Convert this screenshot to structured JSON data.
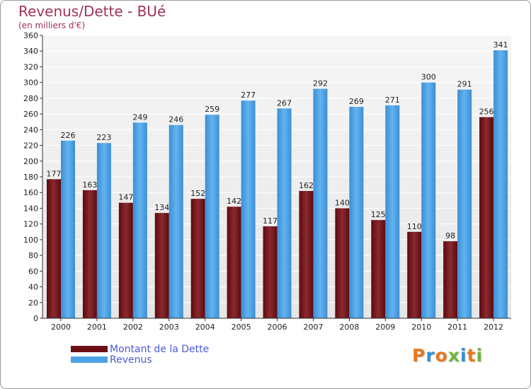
{
  "title": "Revenus/Dette - BUé",
  "subtitle": "(en milliers d'€)",
  "logo": {
    "text": "Proxiti",
    "letters": [
      {
        "ch": "P",
        "color": "#e8771e"
      },
      {
        "ch": "r",
        "color": "#2f8fd8"
      },
      {
        "ch": "o",
        "color": "#e8771e"
      },
      {
        "ch": "x",
        "color": "#6cb83b"
      },
      {
        "ch": "i",
        "color": "#2f8fd8"
      },
      {
        "ch": "t",
        "color": "#e8771e"
      },
      {
        "ch": "i",
        "color": "#6cb83b"
      }
    ]
  },
  "legend": [
    {
      "label": "Montant de la Dette",
      "color": "#6b0f14"
    },
    {
      "label": "Revenus",
      "color": "#4ea3e6"
    }
  ],
  "chart_data": {
    "type": "bar",
    "categories": [
      "2000",
      "2001",
      "2002",
      "2003",
      "2004",
      "2005",
      "2006",
      "2007",
      "2008",
      "2009",
      "2010",
      "2011",
      "2012"
    ],
    "series": [
      {
        "name": "Montant de la Dette",
        "values": [
          177,
          163,
          147,
          134,
          152,
          142,
          117,
          162,
          140,
          125,
          110,
          98,
          256
        ],
        "color": "#7a1a1e"
      },
      {
        "name": "Revenus",
        "values": [
          226,
          223,
          249,
          246,
          259,
          277,
          267,
          292,
          269,
          271,
          300,
          291,
          341
        ],
        "color": "#4ea3e6"
      }
    ],
    "ylim": [
      0,
      360
    ],
    "ytick_step": 20,
    "grid": true,
    "legend_position": "bottom-left"
  }
}
